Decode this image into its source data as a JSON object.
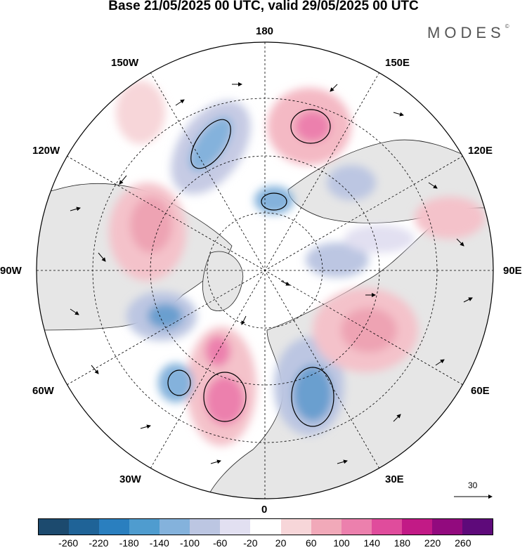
{
  "title": "Base 21/05/2025 00 UTC, valid 29/05/2025 00 UTC",
  "logo": "MODES",
  "logo_mark": "©",
  "longitude_labels": {
    "top": "180",
    "bottom": "0",
    "left": "90W",
    "right": "90E",
    "upper_left": "150W",
    "upper_right": "150E",
    "mid_left": "120W",
    "mid_right": "120E",
    "lower_left": "60W",
    "lower_right": "60E",
    "bottom_left": "30W",
    "bottom_right": "30E"
  },
  "vector_scale": {
    "label": "30"
  },
  "colorbar": {
    "colors": [
      "#1c4a6e",
      "#1f6397",
      "#2a7fbf",
      "#4f9ccf",
      "#84b2dc",
      "#bcc6e2",
      "#e2e0f1",
      "#ffffff",
      "#f7d6d9",
      "#f1a9b9",
      "#ec80ad",
      "#e04c9c",
      "#c21a86",
      "#920a7e",
      "#5e0a7a"
    ],
    "ticks": [
      "-260",
      "-220",
      "-180",
      "-140",
      "-100",
      "-60",
      "-20",
      "20",
      "60",
      "100",
      "140",
      "180",
      "220",
      "260"
    ]
  }
}
